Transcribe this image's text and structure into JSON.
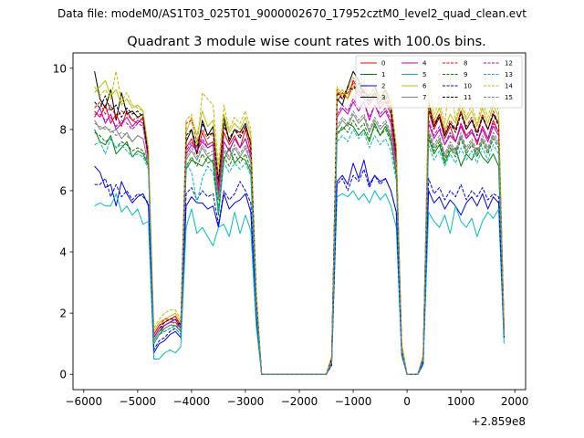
{
  "suptitle": "Data file: modeM0/AS1T03_025T01_9000002670_17952cztM0_level2_quad_clean.evt",
  "chart_data": {
    "type": "line",
    "title": "Quadrant 3 module wise count rates with 100.0s bins.",
    "xlabel": "",
    "ylabel": "",
    "x_offset_label": "+2.859e8",
    "xlim": [
      -6200,
      2200
    ],
    "ylim": [
      -0.5,
      10.5
    ],
    "xticks": [
      -6000,
      -5000,
      -4000,
      -3000,
      -2000,
      -1000,
      0,
      1000,
      2000
    ],
    "xtick_labels": [
      "−6000",
      "−5000",
      "−4000",
      "−3000",
      "−2000",
      "−1000",
      "0",
      "1000",
      "2000"
    ],
    "yticks": [
      0,
      2,
      4,
      6,
      8,
      10
    ],
    "ytick_labels": [
      "0",
      "2",
      "4",
      "6",
      "8",
      "10"
    ],
    "legend_position": "top-right",
    "x": [
      -5800,
      -5700,
      -5600,
      -5500,
      -5400,
      -5300,
      -5200,
      -5100,
      -5000,
      -4900,
      -4800,
      -4700,
      -4600,
      -4500,
      -4400,
      -4300,
      -4200,
      -4100,
      -4000,
      -3900,
      -3800,
      -3700,
      -3600,
      -3500,
      -3400,
      -3300,
      -3200,
      -3100,
      -3000,
      -2900,
      -2800,
      -2700,
      -2600,
      -1500,
      -1400,
      -1300,
      -1200,
      -1100,
      -1000,
      -900,
      -800,
      -700,
      -600,
      -500,
      -400,
      -300,
      -200,
      -100,
      0,
      200,
      300,
      400,
      500,
      600,
      700,
      800,
      900,
      1000,
      1100,
      1200,
      1300,
      1400,
      1500,
      1600,
      1700,
      1800
    ],
    "series": [
      {
        "name": "0",
        "color": "#ff0000",
        "dash": false,
        "values": [
          8.6,
          8.4,
          8.8,
          8.2,
          8.5,
          8.1,
          8.6,
          8.3,
          8.2,
          8.4,
          7.0,
          1.3,
          1.6,
          1.7,
          1.8,
          1.9,
          1.6,
          7.4,
          7.7,
          7.2,
          7.9,
          7.5,
          7.6,
          6.0,
          7.9,
          7.5,
          7.8,
          7.4,
          8.0,
          7.3,
          2.5,
          0,
          0,
          0,
          0.5,
          8.9,
          9.2,
          9.0,
          9.6,
          9.3,
          9.0,
          8.8,
          9.1,
          8.7,
          8.9,
          8.5,
          7.0,
          0.9,
          0,
          0,
          0.6,
          8.6,
          8.0,
          8.4,
          7.7,
          8.1,
          7.6,
          8.2,
          7.8,
          8.0,
          7.5,
          8.1,
          7.7,
          8.3,
          7.9,
          1.4
        ]
      },
      {
        "name": "1",
        "color": "#008000",
        "dash": false,
        "values": [
          8.0,
          7.6,
          7.5,
          7.8,
          7.2,
          7.4,
          7.6,
          7.1,
          7.3,
          7.2,
          6.8,
          1.0,
          1.3,
          1.5,
          1.6,
          1.6,
          1.4,
          6.7,
          7.0,
          6.9,
          6.8,
          7.1,
          6.9,
          5.2,
          7.0,
          7.4,
          6.9,
          7.1,
          7.0,
          6.6,
          2.2,
          0,
          0,
          0,
          0.4,
          7.9,
          8.0,
          8.2,
          8.1,
          7.8,
          8.0,
          7.6,
          8.2,
          7.8,
          8.1,
          7.7,
          6.5,
          0.8,
          0,
          0,
          0.5,
          7.7,
          7.2,
          7.5,
          6.9,
          7.3,
          7.4,
          6.8,
          7.2,
          7.0,
          7.4,
          7.1,
          6.9,
          7.2,
          6.8,
          1.3
        ]
      },
      {
        "name": "2",
        "color": "#0000ff",
        "dash": false,
        "values": [
          6.8,
          6.6,
          6.1,
          6.2,
          5.5,
          6.3,
          5.9,
          5.6,
          5.8,
          5.9,
          5.5,
          0.7,
          1.0,
          1.1,
          1.3,
          1.4,
          1.2,
          5.5,
          5.8,
          5.6,
          5.6,
          5.4,
          5.5,
          4.8,
          5.9,
          5.4,
          5.6,
          5.7,
          5.9,
          5.3,
          1.9,
          0,
          0,
          0,
          0.3,
          6.3,
          6.5,
          6.2,
          6.9,
          6.4,
          7.0,
          6.2,
          6.5,
          6.3,
          6.4,
          6.0,
          5.3,
          0.7,
          0,
          0,
          0.4,
          6.0,
          5.6,
          5.8,
          5.4,
          5.7,
          5.5,
          5.2,
          5.6,
          5.8,
          5.5,
          5.9,
          5.4,
          5.8,
          5.6,
          1.2
        ]
      },
      {
        "name": "3",
        "color": "#000000",
        "dash": false,
        "values": [
          9.9,
          9.0,
          8.7,
          9.3,
          8.3,
          9.2,
          8.5,
          8.6,
          8.4,
          8.5,
          7.2,
          1.1,
          1.4,
          1.6,
          1.7,
          1.8,
          1.5,
          7.6,
          8.0,
          7.2,
          8.3,
          7.8,
          8.1,
          6.4,
          8.4,
          7.6,
          8.0,
          7.9,
          8.2,
          7.5,
          2.6,
          0,
          0,
          0,
          0.5,
          9.0,
          8.8,
          9.4,
          9.9,
          9.6,
          9.2,
          9.1,
          9.4,
          9.0,
          9.3,
          8.8,
          7.3,
          0.9,
          0,
          0,
          0.6,
          8.9,
          8.1,
          8.5,
          7.8,
          8.2,
          8.0,
          8.6,
          8.0,
          8.3,
          7.9,
          8.4,
          8.0,
          8.5,
          8.2,
          1.5
        ]
      },
      {
        "name": "4",
        "color": "#bf00bf",
        "dash": false,
        "values": [
          8.4,
          8.7,
          8.2,
          8.5,
          8.0,
          8.2,
          8.4,
          8.1,
          8.3,
          8.2,
          7.0,
          1.2,
          1.5,
          1.6,
          1.7,
          1.7,
          1.5,
          7.2,
          7.5,
          7.3,
          7.6,
          7.4,
          7.5,
          6.0,
          7.6,
          7.3,
          7.7,
          7.4,
          7.7,
          7.1,
          2.4,
          0,
          0,
          0,
          0.5,
          8.4,
          8.7,
          8.5,
          8.9,
          8.6,
          8.9,
          8.3,
          8.8,
          8.4,
          8.6,
          8.2,
          6.8,
          0.8,
          0,
          0,
          0.5,
          8.2,
          7.7,
          8.0,
          7.5,
          7.8,
          7.6,
          8.1,
          7.7,
          7.9,
          7.6,
          8.0,
          7.6,
          8.1,
          7.8,
          1.4
        ]
      },
      {
        "name": "5",
        "color": "#00bfbf",
        "dash": false,
        "values": [
          5.5,
          5.6,
          5.5,
          5.5,
          5.9,
          5.3,
          5.5,
          5.2,
          5.4,
          4.9,
          5.0,
          0.5,
          0.5,
          0.7,
          0.8,
          0.7,
          0.9,
          4.8,
          5.4,
          4.6,
          4.8,
          4.5,
          4.2,
          4.8,
          4.9,
          4.5,
          5.3,
          4.6,
          5.2,
          4.7,
          1.6,
          0,
          0,
          0,
          0.3,
          5.8,
          5.9,
          5.8,
          6.0,
          5.7,
          5.9,
          5.6,
          6.0,
          5.7,
          5.9,
          5.5,
          4.8,
          0.6,
          0,
          0,
          0.3,
          5.3,
          5.0,
          4.8,
          5.2,
          4.6,
          5.5,
          5.0,
          4.8,
          5.1,
          4.5,
          5.0,
          5.3,
          5.1,
          5.4,
          1.0
        ]
      },
      {
        "name": "6",
        "color": "#bfbf00",
        "dash": false,
        "values": [
          9.2,
          9.4,
          9.6,
          9.1,
          9.3,
          8.8,
          9.0,
          8.7,
          8.8,
          8.6,
          7.3,
          1.4,
          1.7,
          1.8,
          1.9,
          2.0,
          1.7,
          7.9,
          8.4,
          7.8,
          8.6,
          8.1,
          8.3,
          6.5,
          8.5,
          7.9,
          8.2,
          8.0,
          8.4,
          7.8,
          2.7,
          0,
          0,
          0,
          0.6,
          9.1,
          9.3,
          9.0,
          9.4,
          9.2,
          9.5,
          8.9,
          9.3,
          9.0,
          9.2,
          8.8,
          7.4,
          1.0,
          0,
          0,
          0.6,
          9.0,
          8.3,
          8.7,
          8.0,
          8.5,
          8.2,
          8.8,
          8.3,
          8.6,
          8.1,
          8.7,
          8.2,
          8.8,
          8.4,
          1.6
        ]
      },
      {
        "name": "7",
        "color": "#808080",
        "dash": false,
        "values": [
          8.3,
          8.0,
          8.1,
          7.9,
          8.0,
          7.7,
          7.9,
          7.6,
          7.8,
          7.7,
          6.8,
          1.1,
          1.4,
          1.5,
          1.6,
          1.6,
          1.4,
          7.0,
          7.3,
          7.0,
          7.4,
          7.1,
          7.2,
          5.7,
          7.3,
          7.0,
          7.4,
          7.1,
          7.4,
          6.9,
          2.3,
          0,
          0,
          0,
          0.4,
          8.0,
          8.3,
          8.1,
          8.5,
          8.2,
          8.4,
          7.9,
          8.3,
          8.0,
          8.2,
          7.8,
          6.6,
          0.8,
          0,
          0,
          0.5,
          7.9,
          7.4,
          7.7,
          7.1,
          7.5,
          7.2,
          7.8,
          7.3,
          7.6,
          7.2,
          7.7,
          7.3,
          7.8,
          7.5,
          1.3
        ]
      },
      {
        "name": "8",
        "color": "#ff0000",
        "dash": true,
        "values": [
          8.7,
          8.9,
          8.5,
          8.8,
          8.4,
          8.6,
          8.5,
          8.3,
          8.4,
          8.3,
          7.1,
          1.3,
          1.6,
          1.8,
          1.8,
          1.9,
          1.6,
          8.2,
          8.3,
          7.6,
          8.0,
          7.7,
          7.9,
          6.2,
          8.1,
          7.7,
          8.0,
          7.8,
          8.1,
          7.5,
          2.5,
          0,
          0,
          0,
          0.5,
          9.3,
          9.0,
          9.2,
          9.5,
          9.1,
          9.3,
          8.9,
          9.2,
          8.8,
          9.0,
          8.6,
          7.2,
          0.9,
          0,
          0,
          0.6,
          8.8,
          8.2,
          8.5,
          7.9,
          8.3,
          8.0,
          8.6,
          8.1,
          8.4,
          7.9,
          8.5,
          8.0,
          8.6,
          8.2,
          1.5
        ]
      },
      {
        "name": "9",
        "color": "#008000",
        "dash": true,
        "values": [
          7.9,
          7.8,
          7.6,
          7.7,
          7.4,
          7.6,
          7.5,
          7.3,
          7.4,
          7.3,
          6.9,
          1.0,
          1.3,
          1.4,
          1.5,
          1.6,
          1.4,
          6.8,
          7.1,
          6.8,
          7.2,
          6.9,
          7.0,
          5.4,
          7.1,
          6.8,
          7.2,
          6.9,
          7.2,
          6.7,
          2.3,
          0,
          0,
          0,
          0.4,
          7.8,
          8.1,
          7.9,
          8.3,
          8.0,
          8.2,
          7.7,
          8.1,
          7.8,
          8.0,
          7.6,
          6.5,
          0.8,
          0,
          0,
          0.5,
          7.8,
          7.3,
          7.6,
          7.0,
          7.4,
          7.1,
          7.7,
          7.2,
          7.5,
          7.1,
          7.6,
          7.2,
          7.7,
          7.4,
          1.3
        ]
      },
      {
        "name": "10",
        "color": "#0000ff",
        "dash": true,
        "values": [
          6.2,
          6.2,
          6.4,
          5.8,
          6.2,
          5.8,
          6.0,
          5.7,
          5.9,
          5.8,
          5.6,
          0.8,
          1.1,
          1.2,
          1.4,
          1.5,
          1.3,
          5.9,
          6.1,
          5.7,
          6.0,
          5.8,
          5.9,
          4.9,
          6.0,
          5.7,
          5.9,
          6.3,
          6.0,
          5.6,
          2.0,
          0,
          0,
          0,
          0.3,
          6.2,
          6.4,
          6.0,
          6.5,
          6.3,
          6.7,
          6.1,
          6.5,
          6.2,
          6.4,
          6.0,
          5.3,
          0.7,
          0,
          0,
          0.4,
          6.4,
          5.9,
          6.1,
          5.7,
          6.0,
          5.8,
          6.2,
          5.7,
          6.0,
          5.8,
          6.1,
          5.7,
          5.9,
          5.8,
          1.2
        ]
      },
      {
        "name": "11",
        "color": "#000000",
        "dash": true,
        "values": [
          8.9,
          8.7,
          9.1,
          8.6,
          8.8,
          8.4,
          8.7,
          8.5,
          8.6,
          8.4,
          7.1,
          1.2,
          1.5,
          1.7,
          1.8,
          1.8,
          1.6,
          7.8,
          8.0,
          7.4,
          8.2,
          7.8,
          7.9,
          6.3,
          8.2,
          7.7,
          8.0,
          7.7,
          8.1,
          7.6,
          2.6,
          0,
          0,
          0,
          0.5,
          9.2,
          9.0,
          9.4,
          9.3,
          9.5,
          9.1,
          8.9,
          9.2,
          8.9,
          9.1,
          8.7,
          7.2,
          0.9,
          0,
          0,
          0.6,
          8.7,
          8.1,
          8.4,
          7.8,
          8.2,
          7.9,
          8.5,
          8.0,
          8.3,
          7.8,
          8.4,
          8.0,
          8.5,
          8.1,
          1.5
        ]
      },
      {
        "name": "12",
        "color": "#bf00bf",
        "dash": true,
        "values": [
          8.5,
          8.5,
          8.3,
          8.4,
          8.1,
          8.3,
          8.2,
          8.0,
          8.2,
          8.1,
          7.0,
          1.2,
          1.5,
          1.6,
          1.7,
          1.8,
          1.5,
          7.3,
          7.6,
          7.3,
          7.7,
          7.4,
          7.5,
          5.9,
          7.6,
          7.3,
          7.7,
          7.4,
          7.7,
          7.2,
          2.4,
          0,
          0,
          0,
          0.5,
          8.5,
          8.8,
          8.6,
          9.0,
          8.7,
          8.9,
          8.4,
          8.8,
          8.5,
          8.7,
          8.3,
          6.9,
          0.8,
          0,
          0,
          0.5,
          8.3,
          7.8,
          8.1,
          7.5,
          7.9,
          7.6,
          8.2,
          7.7,
          8.0,
          7.6,
          8.1,
          7.7,
          8.2,
          7.9,
          1.4
        ]
      },
      {
        "name": "13",
        "color": "#00bfbf",
        "dash": true,
        "values": [
          7.5,
          7.6,
          7.2,
          7.7,
          7.4,
          7.5,
          7.3,
          7.1,
          7.2,
          7.1,
          6.7,
          1.0,
          1.3,
          1.4,
          1.5,
          1.5,
          1.3,
          6.9,
          6.6,
          5.6,
          6.4,
          6.8,
          6.6,
          5.3,
          6.9,
          6.6,
          6.9,
          6.7,
          6.9,
          6.5,
          2.2,
          0,
          0,
          0,
          0.4,
          7.6,
          7.8,
          7.6,
          8.0,
          7.7,
          7.9,
          7.4,
          7.8,
          7.5,
          7.7,
          7.3,
          6.3,
          0.8,
          0,
          0,
          0.5,
          7.5,
          7.0,
          7.3,
          6.8,
          7.2,
          6.9,
          7.4,
          7.0,
          7.3,
          6.9,
          7.4,
          7.0,
          7.5,
          7.2,
          1.3
        ]
      },
      {
        "name": "14",
        "color": "#bfbf00",
        "dash": true,
        "values": [
          9.4,
          9.1,
          9.3,
          9.0,
          9.9,
          8.9,
          9.2,
          8.8,
          8.7,
          8.6,
          7.4,
          1.5,
          1.8,
          2.0,
          2.1,
          2.1,
          1.8,
          8.3,
          8.5,
          7.4,
          9.2,
          9.0,
          8.8,
          6.8,
          8.8,
          8.0,
          8.4,
          8.2,
          8.6,
          8.0,
          2.8,
          0,
          0,
          0,
          0.6,
          9.4,
          9.1,
          9.3,
          9.7,
          9.4,
          9.6,
          9.1,
          9.4,
          9.2,
          9.3,
          9.0,
          7.5,
          1.0,
          0,
          0,
          0.6,
          9.6,
          8.5,
          8.9,
          8.2,
          9.7,
          8.3,
          9.0,
          8.4,
          8.8,
          8.2,
          8.9,
          8.4,
          9.0,
          8.6,
          1.6
        ]
      },
      {
        "name": "15",
        "color": "#808080",
        "dash": true,
        "values": [
          8.2,
          8.1,
          8.0,
          8.0,
          7.8,
          7.9,
          7.8,
          7.6,
          7.8,
          7.7,
          6.9,
          1.1,
          1.4,
          1.5,
          1.6,
          1.7,
          1.4,
          7.1,
          7.4,
          7.1,
          7.5,
          7.2,
          7.3,
          5.7,
          7.4,
          7.1,
          7.5,
          7.2,
          7.5,
          7.0,
          2.3,
          0,
          0,
          0,
          0.4,
          8.1,
          8.4,
          8.2,
          8.6,
          8.3,
          8.5,
          8.0,
          8.4,
          8.1,
          8.3,
          7.9,
          6.7,
          0.8,
          0,
          0,
          0.5,
          8.0,
          7.5,
          7.8,
          7.2,
          7.6,
          7.3,
          7.9,
          7.4,
          7.7,
          7.3,
          7.8,
          7.4,
          7.9,
          7.6,
          1.3
        ]
      }
    ]
  }
}
